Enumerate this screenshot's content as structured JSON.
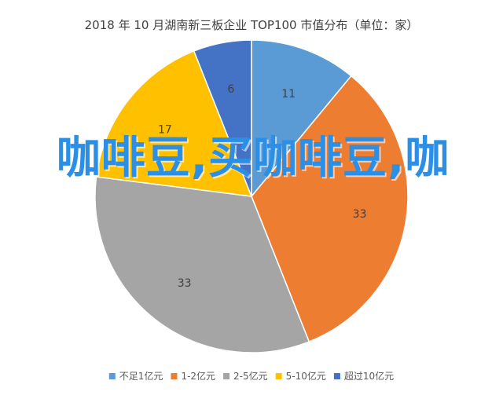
{
  "chart_data": {
    "type": "pie",
    "title": "2018 年 10 月湖南新三板企业 TOP100 市值分布（单位：家）",
    "categories": [
      "不足1亿元",
      "1-2亿元",
      "2-5亿元",
      "5-10亿元",
      "超过10亿元"
    ],
    "values": [
      11,
      33,
      33,
      17,
      6
    ],
    "colors": [
      "#5b9bd5",
      "#ed7d31",
      "#a5a5a5",
      "#ffc000",
      "#4472c4"
    ],
    "legend_position": "bottom",
    "data_labels": [
      "11",
      "33",
      "33",
      "17",
      "6"
    ]
  },
  "watermark": {
    "text": "咖啡豆,买咖啡豆,咖"
  }
}
